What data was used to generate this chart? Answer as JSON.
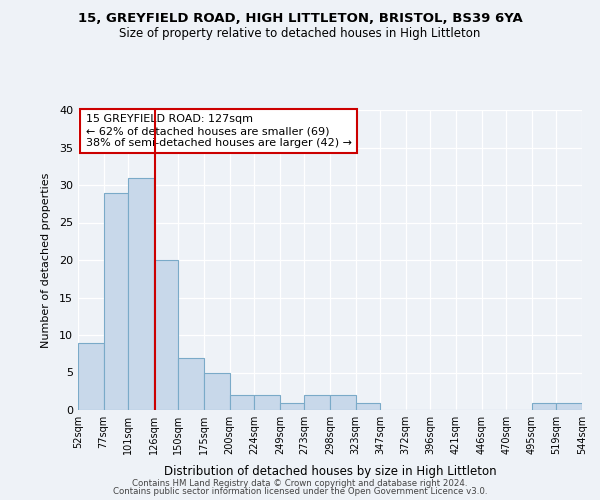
{
  "title": "15, GREYFIELD ROAD, HIGH LITTLETON, BRISTOL, BS39 6YA",
  "subtitle": "Size of property relative to detached houses in High Littleton",
  "xlabel": "Distribution of detached houses by size in High Littleton",
  "ylabel": "Number of detached properties",
  "bin_edges": [
    52,
    77,
    101,
    126,
    150,
    175,
    200,
    224,
    249,
    273,
    298,
    323,
    347,
    372,
    396,
    421,
    446,
    470,
    495,
    519,
    544
  ],
  "counts": [
    9,
    29,
    31,
    20,
    7,
    5,
    2,
    2,
    1,
    2,
    2,
    1,
    0,
    0,
    0,
    0,
    0,
    0,
    1,
    1
  ],
  "tick_labels": [
    "52sqm",
    "77sqm",
    "101sqm",
    "126sqm",
    "150sqm",
    "175sqm",
    "200sqm",
    "224sqm",
    "249sqm",
    "273sqm",
    "298sqm",
    "323sqm",
    "347sqm",
    "372sqm",
    "396sqm",
    "421sqm",
    "446sqm",
    "470sqm",
    "495sqm",
    "519sqm",
    "544sqm"
  ],
  "bar_color": "#c8d8ea",
  "bar_edge_color": "#7aaac8",
  "property_line_x": 127,
  "property_line_color": "#cc0000",
  "annotation_line1": "15 GREYFIELD ROAD: 127sqm",
  "annotation_line2": "← 62% of detached houses are smaller (69)",
  "annotation_line3": "38% of semi-detached houses are larger (42) →",
  "annotation_box_color": "#ffffff",
  "annotation_box_edge_color": "#cc0000",
  "ylim": [
    0,
    40
  ],
  "yticks": [
    0,
    5,
    10,
    15,
    20,
    25,
    30,
    35,
    40
  ],
  "footer1": "Contains HM Land Registry data © Crown copyright and database right 2024.",
  "footer2": "Contains public sector information licensed under the Open Government Licence v3.0.",
  "background_color": "#eef2f7"
}
